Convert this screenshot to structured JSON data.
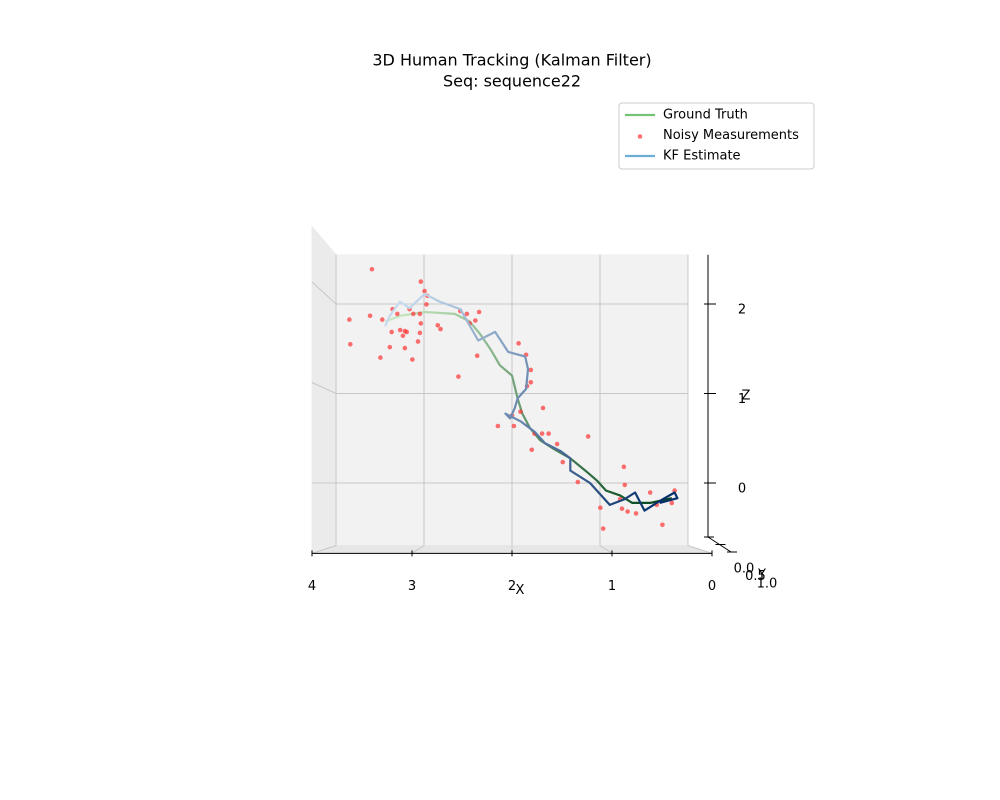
{
  "chart_data": {
    "type": "line3d",
    "title": "3D Human Tracking (Kalman Filter)",
    "subtitle": "Seq: sequence22",
    "xlabel": "X",
    "ylabel": "Y",
    "zlabel": "Z",
    "xlim": [
      0,
      4
    ],
    "x_reversed": true,
    "ylim": [
      0,
      1
    ],
    "zlim": [
      -0.7,
      2.55
    ],
    "xticks": [
      0,
      1,
      2,
      3,
      4
    ],
    "yticks": [
      {
        "value": 0,
        "label": "0.0"
      },
      {
        "value": 0.5,
        "label": "0.5"
      },
      {
        "value": 1,
        "label": "1.0"
      }
    ],
    "zticks": [
      0,
      1,
      2
    ],
    "grid": true,
    "legend": "upper right",
    "series": [
      {
        "name": "Ground Truth",
        "mode": "line",
        "color": "#74c476",
        "gradient": [
          "#c7e9c0",
          "#00441b"
        ],
        "x": [
          3.35,
          3.19,
          2.93,
          2.61,
          2.45,
          2.34,
          2.23,
          2.13,
          2.0,
          1.94,
          1.89,
          1.81,
          1.7,
          1.54,
          1.38,
          1.22,
          1.09,
          1.0,
          0.85,
          0.72,
          0.53,
          0.3
        ],
        "z": [
          1.7,
          1.76,
          1.8,
          1.78,
          1.7,
          1.57,
          1.41,
          1.24,
          1.13,
          0.89,
          0.73,
          0.58,
          0.45,
          0.35,
          0.26,
          0.13,
          0.02,
          -0.08,
          -0.13,
          -0.21,
          -0.21,
          -0.16
        ]
      },
      {
        "name": "Noisy Measurements",
        "mode": "scatter",
        "color": "#ff3333",
        "x": [
          3.49,
          2.97,
          2.93,
          2.9,
          2.91,
          3.73,
          3.72,
          3.51,
          3.38,
          3.27,
          3.22,
          3.28,
          3.19,
          3.14,
          3.16,
          3.12,
          3.09,
          3.05,
          2.98,
          2.97,
          2.98,
          3.0,
          3.14,
          3.3,
          3.4,
          3.06,
          2.79,
          2.76,
          2.55,
          2.48,
          2.35,
          2.39,
          2.45,
          2.37,
          2.57,
          1.93,
          1.85,
          1.8,
          1.8,
          1.84,
          1.91,
          2.0,
          1.67,
          2.15,
          1.98,
          1.76,
          1.68,
          1.61,
          1.52,
          1.79,
          1.46,
          1.19,
          1.3,
          0.81,
          0.8,
          0.53,
          0.85,
          1.06,
          0.83,
          0.77,
          0.68,
          0.46,
          0.3,
          0.27,
          0.4,
          1.03
        ],
        "z": [
          2.25,
          2.12,
          2.02,
          1.97,
          1.88,
          1.72,
          1.46,
          1.76,
          1.72,
          1.83,
          1.78,
          1.59,
          1.61,
          1.6,
          1.55,
          1.59,
          1.83,
          1.78,
          1.78,
          1.68,
          1.58,
          1.49,
          1.42,
          1.43,
          1.32,
          1.3,
          1.66,
          1.62,
          1.81,
          1.78,
          1.8,
          1.71,
          1.68,
          1.34,
          1.12,
          1.47,
          1.35,
          1.19,
          1.06,
          1.02,
          0.75,
          0.71,
          0.79,
          0.6,
          0.6,
          0.52,
          0.52,
          0.52,
          0.41,
          0.35,
          0.22,
          0.49,
          0.01,
          0.17,
          -0.02,
          -0.1,
          -0.17,
          -0.26,
          -0.27,
          -0.3,
          -0.32,
          -0.23,
          -0.21,
          -0.08,
          -0.44,
          -0.48
        ]
      },
      {
        "name": "KF Estimate",
        "mode": "line",
        "color": "#6baed6",
        "gradient": [
          "#c6dbef",
          "#08306b"
        ],
        "x": [
          3.35,
          3.3,
          3.19,
          3.09,
          2.93,
          2.77,
          2.55,
          2.36,
          2.18,
          2.04,
          1.86,
          1.83,
          1.85,
          1.94,
          1.97,
          2.02,
          2.07,
          1.91,
          1.76,
          1.65,
          1.49,
          1.38,
          1.38,
          1.17,
          0.96,
          0.8,
          0.69,
          0.59,
          0.43,
          0.27,
          0.24,
          0.43
        ],
        "z": [
          1.65,
          1.76,
          1.91,
          1.84,
          1.99,
          1.91,
          1.83,
          1.5,
          1.59,
          1.38,
          1.33,
          1.2,
          0.99,
          0.89,
          0.79,
          0.68,
          0.73,
          0.65,
          0.54,
          0.42,
          0.34,
          0.26,
          0.13,
          0.0,
          -0.23,
          -0.17,
          -0.1,
          -0.29,
          -0.19,
          -0.1,
          -0.16,
          -0.21
        ]
      }
    ]
  }
}
